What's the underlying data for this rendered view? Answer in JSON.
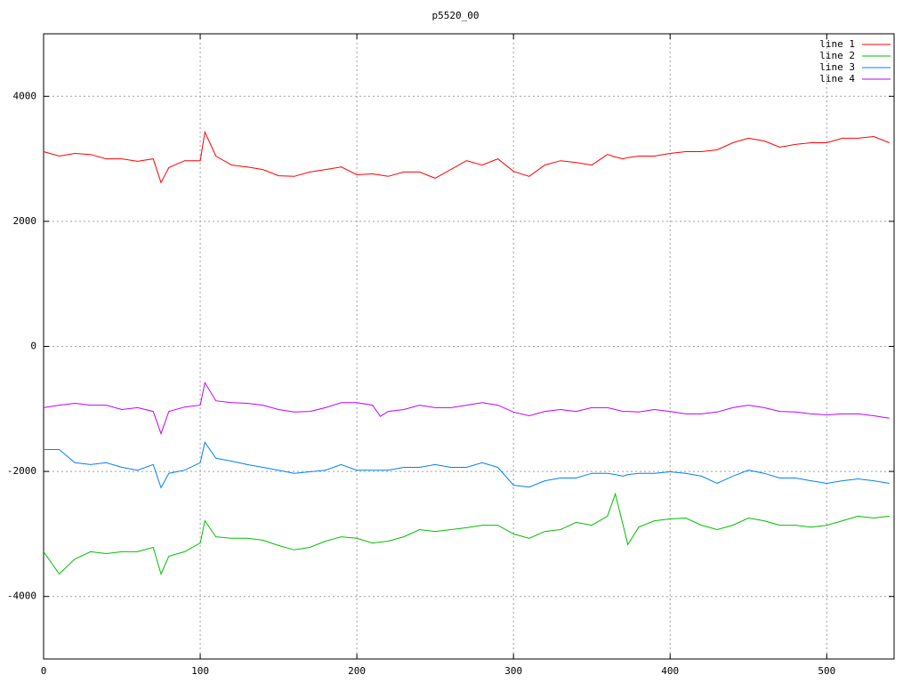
{
  "chart_data": {
    "type": "line",
    "title": "p5520_00",
    "x": [
      0,
      10,
      20,
      30,
      40,
      50,
      60,
      70,
      75,
      80,
      90,
      100,
      103,
      110,
      120,
      130,
      140,
      150,
      160,
      170,
      180,
      190,
      200,
      210,
      215,
      220,
      230,
      240,
      250,
      260,
      270,
      280,
      290,
      300,
      310,
      320,
      330,
      340,
      350,
      360,
      365,
      370,
      373,
      380,
      390,
      400,
      410,
      420,
      430,
      440,
      450,
      460,
      470,
      480,
      490,
      500,
      510,
      520,
      530,
      540
    ],
    "series": [
      {
        "name": "line 1",
        "color": "#ff0000",
        "values": [
          3115,
          3044,
          3087,
          3070,
          3000,
          3000,
          2960,
          3000,
          2620,
          2860,
          2970,
          2970,
          3430,
          3044,
          2900,
          2870,
          2830,
          2730,
          2720,
          2790,
          2830,
          2870,
          2745,
          2760,
          2740,
          2720,
          2790,
          2790,
          2690,
          2830,
          2970,
          2900,
          3000,
          2800,
          2720,
          2900,
          2970,
          2940,
          2900,
          3070,
          3030,
          3000,
          3020,
          3044,
          3044,
          3087,
          3115,
          3115,
          3144,
          3257,
          3330,
          3286,
          3186,
          3230,
          3257,
          3257,
          3330,
          3330,
          3357,
          3257
        ]
      },
      {
        "name": "line 2",
        "color": "#00c000",
        "values": [
          -3285,
          -3640,
          -3400,
          -3285,
          -3315,
          -3285,
          -3285,
          -3215,
          -3640,
          -3355,
          -3285,
          -3145,
          -2790,
          -3045,
          -3070,
          -3070,
          -3100,
          -3185,
          -3255,
          -3215,
          -3115,
          -3045,
          -3070,
          -3145,
          -3130,
          -3115,
          -3045,
          -2930,
          -2960,
          -2930,
          -2900,
          -2860,
          -2860,
          -3000,
          -3070,
          -2960,
          -2930,
          -2815,
          -2860,
          -2715,
          -2360,
          -2860,
          -3170,
          -2890,
          -2790,
          -2760,
          -2745,
          -2860,
          -2930,
          -2860,
          -2745,
          -2790,
          -2860,
          -2860,
          -2890,
          -2860,
          -2790,
          -2715,
          -2745,
          -2715
        ]
      },
      {
        "name": "line 3",
        "color": "#0080ff",
        "values": [
          -1650,
          -1650,
          -1860,
          -1890,
          -1860,
          -1935,
          -1980,
          -1890,
          -2260,
          -2030,
          -1980,
          -1860,
          -1535,
          -1790,
          -1835,
          -1890,
          -1935,
          -1980,
          -2030,
          -2005,
          -1980,
          -1890,
          -1980,
          -1980,
          -1980,
          -1980,
          -1935,
          -1935,
          -1890,
          -1935,
          -1935,
          -1860,
          -1935,
          -2220,
          -2250,
          -2150,
          -2105,
          -2105,
          -2030,
          -2030,
          -2050,
          -2075,
          -2050,
          -2030,
          -2030,
          -2005,
          -2030,
          -2075,
          -2190,
          -2075,
          -1980,
          -2030,
          -2105,
          -2105,
          -2150,
          -2190,
          -2150,
          -2120,
          -2150,
          -2190
        ]
      },
      {
        "name": "line 4",
        "color": "#c000ff",
        "values": [
          -980,
          -940,
          -910,
          -940,
          -940,
          -1010,
          -980,
          -1040,
          -1395,
          -1040,
          -970,
          -940,
          -580,
          -870,
          -900,
          -910,
          -940,
          -1010,
          -1050,
          -1040,
          -980,
          -900,
          -900,
          -940,
          -1120,
          -1040,
          -1010,
          -940,
          -980,
          -980,
          -940,
          -900,
          -940,
          -1050,
          -1110,
          -1040,
          -1010,
          -1040,
          -980,
          -980,
          -1010,
          -1040,
          -1040,
          -1050,
          -1010,
          -1040,
          -1080,
          -1080,
          -1050,
          -980,
          -940,
          -980,
          -1040,
          -1050,
          -1080,
          -1095,
          -1080,
          -1080,
          -1110,
          -1150
        ]
      }
    ],
    "xlim": [
      0,
      543
    ],
    "xticks": [
      0,
      100,
      200,
      300,
      400,
      500
    ],
    "ylim": [
      -5000,
      5000
    ],
    "yticks": [
      -4000,
      -2000,
      0,
      2000,
      4000
    ],
    "grid": true,
    "legend": "top-right"
  }
}
